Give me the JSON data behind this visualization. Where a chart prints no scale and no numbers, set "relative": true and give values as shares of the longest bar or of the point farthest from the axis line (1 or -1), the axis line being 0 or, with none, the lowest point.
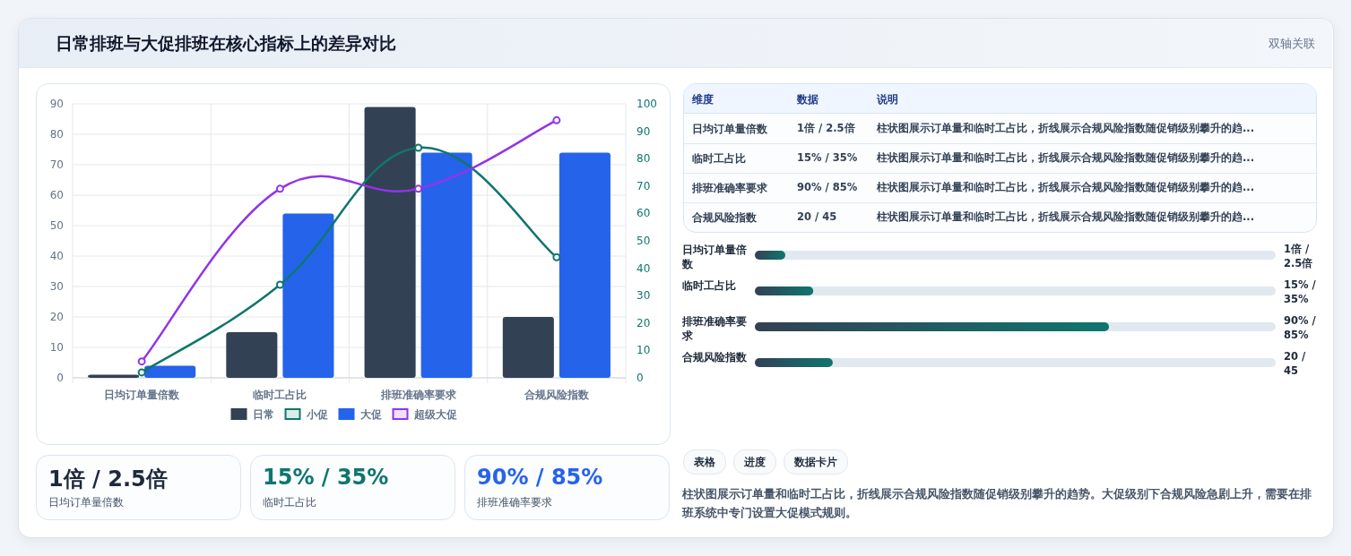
{
  "chart_data": [
    {
      "type": "other",
      "title": "日常排班与大促排班在核心指标上的差异对比",
      "subtitle": "双轴关联"
    },
    {
      "type": "bar",
      "categories": [
        "日均订单量倍数",
        "临时工占比",
        "排班准确率要求",
        "合规风险指数"
      ],
      "series": [
        {
          "name": "日常",
          "type": "bar",
          "color": "#334155",
          "values": [
            1,
            15,
            89,
            20
          ]
        },
        {
          "name": "小促",
          "type": "line",
          "axis": "y2",
          "color": "#0f766e",
          "values": [
            2,
            34,
            84,
            44
          ]
        },
        {
          "name": "大促",
          "type": "bar",
          "color": "#2563eb",
          "values": [
            4,
            54,
            74,
            74
          ]
        },
        {
          "name": "超级大促",
          "type": "line",
          "axis": "y2",
          "color": "#9333ea",
          "values": [
            6,
            69,
            69,
            94
          ]
        }
      ],
      "ylim": [
        0,
        90
      ],
      "yticks": [
        0,
        10,
        20,
        30,
        40,
        50,
        60,
        70,
        80,
        90
      ],
      "y2lim": [
        0,
        100
      ],
      "y2ticks": [
        0,
        10,
        20,
        30,
        40,
        50,
        60,
        70,
        80,
        90,
        100
      ],
      "grid": true,
      "legend": "bottom",
      "marker": "circle"
    },
    {
      "type": "other",
      "categories": [
        "维度",
        "数据",
        "说明"
      ],
      "y_categories": [
        "日均订单量倍数",
        "临时工占比",
        "排班准确率要求",
        "合规风险指数"
      ],
      "cell_labels": [
        [
          "1倍 / 2.5倍",
          "柱状图展示订单量和临时工占比，折线展示合规风险指数随促销级别攀升的趋..."
        ],
        [
          "15% / 35%",
          "柱状图展示订单量和临时工占比，折线展示合规风险指数随促销级别攀升的趋..."
        ],
        [
          "90% / 85%",
          "柱状图展示订单量和临时工占比，折线展示合规风险指数随促销级别攀升的趋..."
        ],
        [
          "20 / 45",
          "柱状图展示订单量和临时工占比，折线展示合规风险指数随促销级别攀升的趋..."
        ]
      ]
    },
    {
      "type": "bar",
      "orientation": "horizontal",
      "relative": true,
      "categories": [
        "日均订单量倍数",
        "临时工占比",
        "排班准确率要求",
        "合规风险指数"
      ],
      "values": [
        0.086,
        0.165,
        1,
        0.22
      ],
      "color": "#0f766e",
      "annotations": [
        "1倍 / 2.5倍",
        "15% / 35%",
        "90% / 85%",
        "20 / 45"
      ]
    },
    {
      "type": "other",
      "categories": [
        "日均订单量倍数",
        "临时工占比",
        "排班准确率要求"
      ],
      "value_labels": [
        "1倍 / 2.5倍",
        "15% / 35%",
        "90% / 85%"
      ]
    },
    {
      "type": "other",
      "annotations": [
        "表格",
        "进度",
        "数据卡片",
        "柱状图展示订单量和临时工占比，折线展示合规风险指数随促销级别攀升的趋势。大促级别下合规风险急剧上升，需要在排班系统中专门设置大促模式规则。"
      ]
    }
  ]
}
